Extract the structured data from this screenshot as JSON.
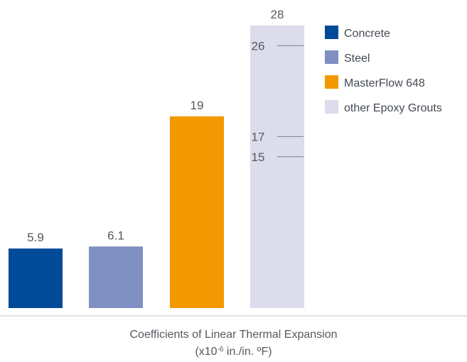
{
  "chart_data": {
    "type": "bar",
    "categories": [
      "Concrete",
      "Steel",
      "MasterFlow 648",
      "other Epoxy Grouts"
    ],
    "values": [
      5.9,
      6.1,
      19,
      28
    ],
    "value_labels": [
      "5.9",
      "6.1",
      "19",
      "28"
    ],
    "colors": [
      "#004a97",
      "#7f8fc1",
      "#f39800",
      "#dcdcec"
    ],
    "range_marks": [
      {
        "value": 26,
        "label": "26"
      },
      {
        "value": 17,
        "label": "17"
      },
      {
        "value": 15,
        "label": "15"
      }
    ],
    "legend": {
      "placement": "top-right",
      "entries": [
        {
          "label": "Concrete",
          "color": "#004a97"
        },
        {
          "label": "Steel",
          "color": "#7f8fc1"
        },
        {
          "label": "MasterFlow 648",
          "color": "#f39800"
        },
        {
          "label": "other Epoxy Grouts",
          "color": "#dcdcec"
        }
      ]
    },
    "xlabel": "Coefficients of Linear Thermal Expansion",
    "unit_prefix": "(x10",
    "unit_exponent": "-6",
    "unit_suffix": " in./in. ºF)",
    "ylim": [
      0,
      28
    ],
    "grid": false
  }
}
